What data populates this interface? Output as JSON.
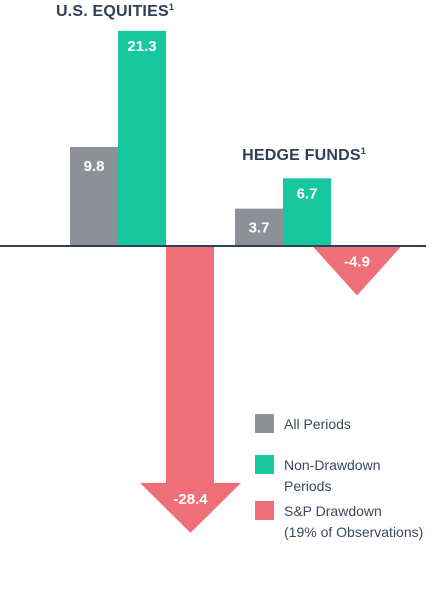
{
  "chart_data": {
    "type": "bar",
    "groups": [
      {
        "title": "U.S. EQUITIES",
        "footnote": "1"
      },
      {
        "title": "HEDGE FUNDS",
        "footnote": "1"
      }
    ],
    "categories": [
      "U.S. EQUITIES",
      "HEDGE FUNDS"
    ],
    "series": [
      {
        "name": "All Periods",
        "values": [
          9.8,
          3.7
        ],
        "color": "#8e9097"
      },
      {
        "name": "Non-Drawdown Periods",
        "values": [
          21.3,
          6.7
        ],
        "color": "#17c7a0"
      },
      {
        "name": "S&P Drawdown (19% of Observations)",
        "values": [
          -28.4,
          -4.9
        ],
        "color": "#ee6f77"
      }
    ],
    "labels": [
      [
        "9.8",
        "21.3",
        "-28.4"
      ],
      [
        "3.7",
        "6.7",
        "-4.9"
      ]
    ],
    "legend": [
      {
        "lines": [
          "All Periods"
        ],
        "color": "#8e9097"
      },
      {
        "lines": [
          "Non-Drawdown",
          "Periods"
        ],
        "color": "#17c7a0"
      },
      {
        "lines": [
          "S&P Drawdown",
          "(19% of Observations)"
        ],
        "color": "#ee6f77"
      }
    ],
    "legend_position": "bottom-right",
    "axis_color": "#2e4057",
    "grid": false
  }
}
